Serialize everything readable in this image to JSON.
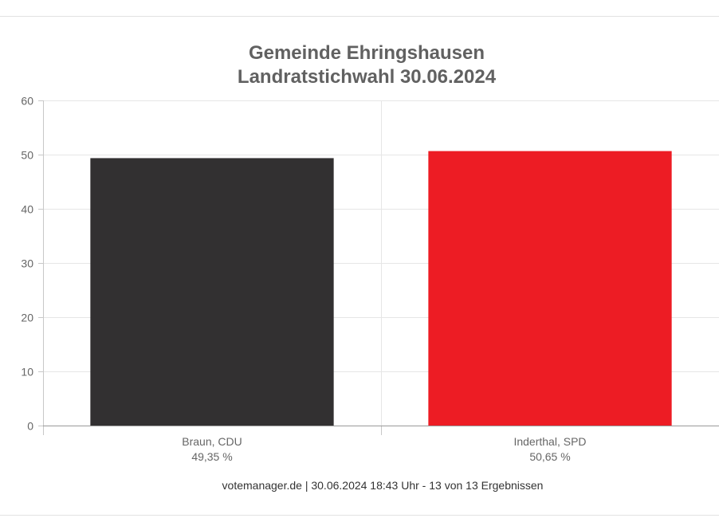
{
  "chart_data": {
    "type": "bar",
    "title_lines": [
      "Gemeinde Ehringshausen",
      "Landratstichwahl 30.06.2024"
    ],
    "categories": [
      "Braun, CDU",
      "Inderthal, SPD"
    ],
    "value_labels": [
      "49,35 %",
      "50,65 %"
    ],
    "values": [
      49.35,
      50.65
    ],
    "colors": [
      "#323031",
      "#ed1c24"
    ],
    "ylim": [
      0,
      60
    ],
    "yticks": [
      "0",
      "10",
      "20",
      "30",
      "40",
      "50",
      "60"
    ],
    "xlabel": "",
    "ylabel": "",
    "grid": true,
    "legend": "none"
  },
  "footer": {
    "text": "votemanager.de | 30.06.2024 18:43 Uhr - 13 von 13 Ergebnissen"
  }
}
